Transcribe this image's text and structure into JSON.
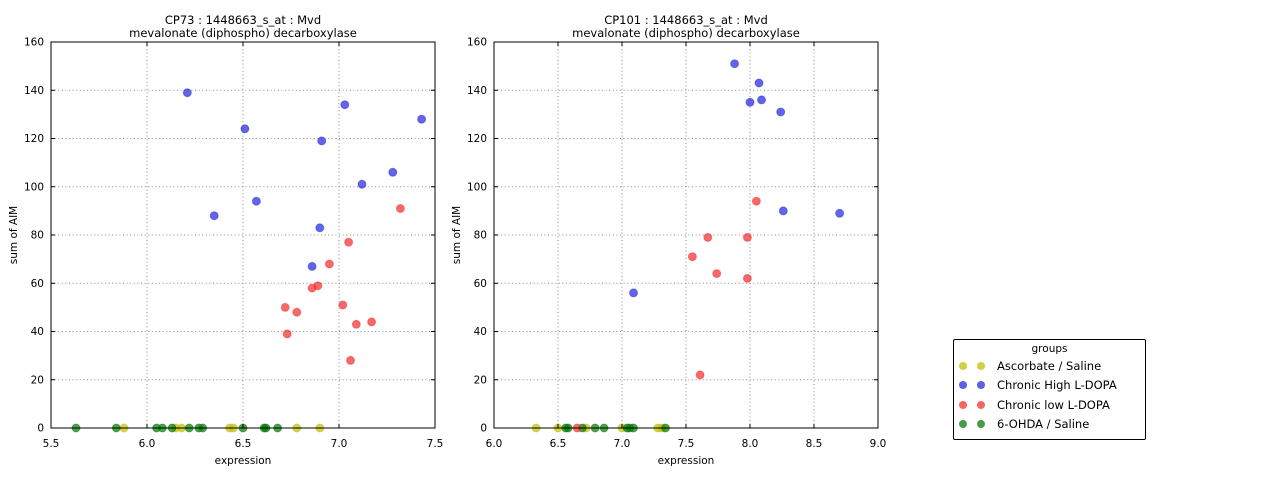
{
  "figure": {
    "background": "#ffffff"
  },
  "legend": {
    "title": "groups"
  },
  "groups": [
    {
      "name": "Ascorbate / Saline",
      "color": "#bfbf00"
    },
    {
      "name": "Chronic High L-DOPA",
      "color": "#2222dd"
    },
    {
      "name": "Chronic low L-DOPA",
      "color": "#f02a2a"
    },
    {
      "name": "6-OHDA / Saline",
      "color": "#007700"
    }
  ],
  "chart_data": [
    {
      "type": "scatter",
      "title_line1": "CP73 : 1448663_s_at : Mvd",
      "title_line2": "mevalonate (diphospho) decarboxylase",
      "xlabel": "expression",
      "ylabel": "sum of AIM",
      "xlim": [
        5.5,
        7.5
      ],
      "ylim": [
        0,
        160
      ],
      "xticks": [
        5.5,
        6.0,
        6.5,
        7.0,
        7.5
      ],
      "yticks": [
        0,
        20,
        40,
        60,
        80,
        100,
        120,
        140,
        160
      ],
      "xtick_labels": [
        "5.5",
        "6.0",
        "6.5",
        "7.0",
        "7.5"
      ],
      "ytick_labels": [
        "0",
        "20",
        "40",
        "60",
        "80",
        "100",
        "120",
        "140",
        "160"
      ],
      "grid": true,
      "legend_position": "outside-right",
      "series": [
        {
          "name": "Ascorbate / Saline",
          "points": [
            [
              5.88,
              0
            ],
            [
              6.15,
              0
            ],
            [
              6.18,
              0
            ],
            [
              6.43,
              0
            ],
            [
              6.45,
              0
            ],
            [
              6.78,
              0
            ],
            [
              6.9,
              0
            ]
          ]
        },
        {
          "name": "Chronic High L-DOPA",
          "points": [
            [
              6.21,
              139
            ],
            [
              6.35,
              88
            ],
            [
              6.51,
              124
            ],
            [
              6.57,
              94
            ],
            [
              6.86,
              67
            ],
            [
              6.9,
              83
            ],
            [
              6.91,
              119
            ],
            [
              7.03,
              134
            ],
            [
              7.12,
              101
            ],
            [
              7.28,
              106
            ],
            [
              7.43,
              128
            ]
          ]
        },
        {
          "name": "Chronic low L-DOPA",
          "points": [
            [
              6.72,
              50
            ],
            [
              6.73,
              39
            ],
            [
              6.78,
              48
            ],
            [
              6.86,
              58
            ],
            [
              6.89,
              59
            ],
            [
              6.95,
              68
            ],
            [
              7.02,
              51
            ],
            [
              7.05,
              77
            ],
            [
              7.06,
              28
            ],
            [
              7.09,
              43
            ],
            [
              7.17,
              44
            ],
            [
              7.32,
              91
            ]
          ]
        },
        {
          "name": "6-OHDA / Saline",
          "points": [
            [
              5.63,
              0
            ],
            [
              5.84,
              0
            ],
            [
              6.05,
              0
            ],
            [
              6.08,
              0
            ],
            [
              6.13,
              0
            ],
            [
              6.22,
              0
            ],
            [
              6.27,
              0
            ],
            [
              6.29,
              0
            ],
            [
              6.5,
              0
            ],
            [
              6.61,
              0
            ],
            [
              6.62,
              0
            ],
            [
              6.68,
              0
            ]
          ]
        }
      ]
    },
    {
      "type": "scatter",
      "title_line1": "CP101 : 1448663_s_at : Mvd",
      "title_line2": "mevalonate (diphospho) decarboxylase",
      "xlabel": "expression",
      "ylabel": "sum of AIM",
      "xlim": [
        6.0,
        9.0
      ],
      "ylim": [
        0,
        160
      ],
      "xticks": [
        6.0,
        6.5,
        7.0,
        7.5,
        8.0,
        8.5,
        9.0
      ],
      "yticks": [
        0,
        20,
        40,
        60,
        80,
        100,
        120,
        140,
        160
      ],
      "xtick_labels": [
        "6.0",
        "6.5",
        "7.0",
        "7.5",
        "8.0",
        "8.5",
        "9.0"
      ],
      "ytick_labels": [
        "0",
        "20",
        "40",
        "60",
        "80",
        "100",
        "120",
        "140",
        "160"
      ],
      "grid": true,
      "series": [
        {
          "name": "Ascorbate / Saline",
          "points": [
            [
              6.33,
              0
            ],
            [
              6.5,
              0
            ],
            [
              6.72,
              0
            ],
            [
              7.0,
              0
            ],
            [
              7.28,
              0
            ],
            [
              7.31,
              0
            ]
          ]
        },
        {
          "name": "Chronic High L-DOPA",
          "points": [
            [
              7.09,
              56
            ],
            [
              7.88,
              151
            ],
            [
              8.0,
              135
            ],
            [
              8.07,
              143
            ],
            [
              8.09,
              136
            ],
            [
              8.24,
              131
            ],
            [
              8.26,
              90
            ],
            [
              8.7,
              89
            ]
          ]
        },
        {
          "name": "Chronic low L-DOPA",
          "points": [
            [
              6.65,
              0
            ],
            [
              7.55,
              71
            ],
            [
              7.61,
              22
            ],
            [
              7.67,
              79
            ],
            [
              7.74,
              64
            ],
            [
              7.98,
              62
            ],
            [
              7.98,
              79
            ],
            [
              8.05,
              94
            ]
          ]
        },
        {
          "name": "6-OHDA / Saline",
          "points": [
            [
              6.56,
              0
            ],
            [
              6.58,
              0
            ],
            [
              6.69,
              0
            ],
            [
              6.79,
              0
            ],
            [
              6.86,
              0
            ],
            [
              7.04,
              0
            ],
            [
              7.06,
              0
            ],
            [
              7.09,
              0
            ],
            [
              7.34,
              0
            ]
          ]
        }
      ]
    }
  ]
}
